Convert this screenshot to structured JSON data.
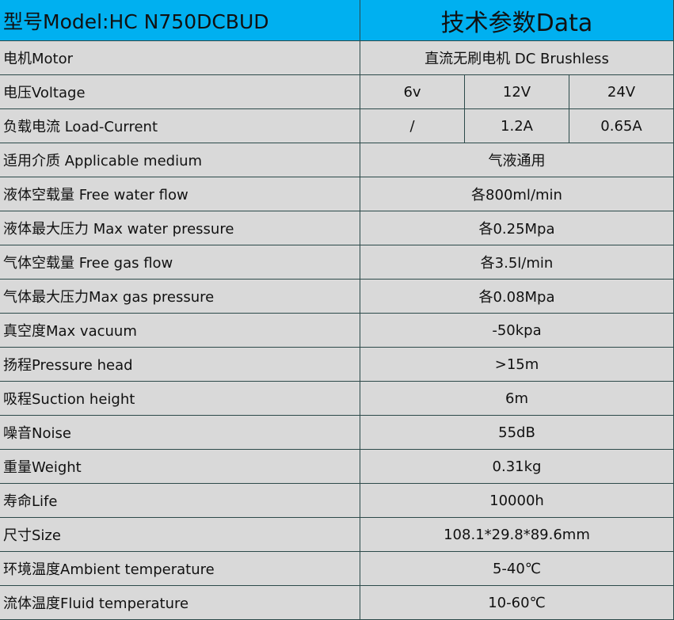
{
  "header": {
    "model": "型号Model:HC N750DCBUD",
    "title": "技术参数Data"
  },
  "table": {
    "rows": [
      {
        "label": "电机Motor",
        "values": [
          "直流无刷电机 DC Brushless"
        ]
      },
      {
        "label": "电压Voltage",
        "values": [
          "6v",
          "12V",
          "24V"
        ]
      },
      {
        "label": "负载电流 Load-Current",
        "values": [
          "/",
          "1.2A",
          "0.65A"
        ]
      },
      {
        "label": "适用介质 Applicable medium",
        "values": [
          "气液通用"
        ]
      },
      {
        "label": "液体空载量 Free water flow",
        "values": [
          "各800ml/min"
        ]
      },
      {
        "label": "液体最大压力 Max water pressure",
        "values": [
          "各0.25Mpa"
        ]
      },
      {
        "label": "气体空载量 Free gas flow",
        "values": [
          "各3.5l/min"
        ]
      },
      {
        "label": "气体最大压力Max gas pressure",
        "values": [
          "各0.08Mpa"
        ]
      },
      {
        "label": "真空度Max vacuum",
        "values": [
          "-50kpa"
        ]
      },
      {
        "label": "扬程Pressure head",
        "values": [
          ">15m"
        ]
      },
      {
        "label": "吸程Suction height",
        "values": [
          "6m"
        ]
      },
      {
        "label": "噪音Noise",
        "values": [
          "55dB"
        ]
      },
      {
        "label": "重量Weight",
        "values": [
          "0.31kg"
        ]
      },
      {
        "label": "寿命Life",
        "values": [
          "10000h"
        ]
      },
      {
        "label": "尺寸Size",
        "values": [
          "108.1*29.8*89.6mm"
        ]
      },
      {
        "label": "环境温度Ambient temperature",
        "values": [
          "5-40℃"
        ]
      },
      {
        "label": "流体温度Fluid temperature",
        "values": [
          "10-60℃"
        ]
      }
    ]
  }
}
